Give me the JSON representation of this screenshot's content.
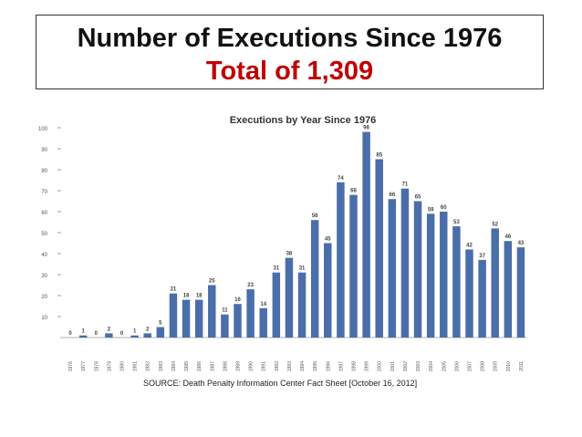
{
  "slide": {
    "heading": "Number of Executions Since 1976",
    "subheading": "Total  of  1,309",
    "subheading_color": "#c00000",
    "source": "SOURCE:  Death Penalty Information Center Fact Sheet [October 16, 2012]"
  },
  "chart_data": {
    "type": "bar",
    "title": "Executions by Year Since 1976",
    "xlabel": "",
    "ylabel": "",
    "ylim": [
      0,
      100
    ],
    "yticks": [
      10,
      20,
      30,
      40,
      50,
      60,
      70,
      80,
      90,
      100
    ],
    "grid": false,
    "bar_color": "#4a6ea9",
    "categories": [
      "1976",
      "1977",
      "1978",
      "1979",
      "1980",
      "1981",
      "1982",
      "1983",
      "1984",
      "1985",
      "1986",
      "1987",
      "1988",
      "1989",
      "1990",
      "1991",
      "1992",
      "1993",
      "1994",
      "1995",
      "1996",
      "1997",
      "1998",
      "1999",
      "2000",
      "2001",
      "2002",
      "2003",
      "2004",
      "2005",
      "2006",
      "2007",
      "2008",
      "2009",
      "2010",
      "2011"
    ],
    "values": [
      0,
      1,
      0,
      2,
      0,
      1,
      2,
      5,
      21,
      18,
      18,
      25,
      11,
      16,
      23,
      14,
      31,
      38,
      31,
      56,
      45,
      74,
      68,
      98,
      85,
      66,
      71,
      65,
      59,
      60,
      53,
      42,
      37,
      52,
      46,
      43
    ]
  }
}
